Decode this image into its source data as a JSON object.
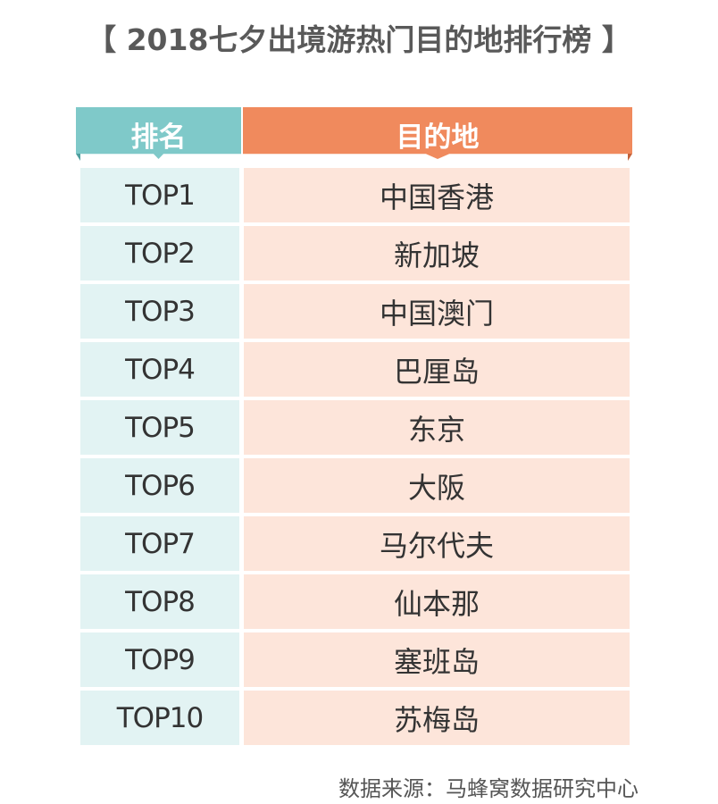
{
  "chart_data": {
    "type": "table",
    "title": "【 2018七夕出境游热门目的地排行榜 】",
    "columns": [
      "排名",
      "目的地"
    ],
    "rows": [
      [
        "TOP1",
        "中国香港"
      ],
      [
        "TOP2",
        "新加坡"
      ],
      [
        "TOP3",
        "中国澳门"
      ],
      [
        "TOP4",
        "巴厘岛"
      ],
      [
        "TOP5",
        "东京"
      ],
      [
        "TOP6",
        "大阪"
      ],
      [
        "TOP7",
        "马尔代夫"
      ],
      [
        "TOP8",
        "仙本那"
      ],
      [
        "TOP9",
        "塞班岛"
      ],
      [
        "TOP10",
        "苏梅岛"
      ]
    ]
  },
  "source": "数据来源：马蜂窝数据研究中心",
  "colors": {
    "rank_header": "#7fc9c9",
    "destination_header": "#f08a5d",
    "rank_cell": "#e2f3f3",
    "destination_cell": "#fde5da"
  }
}
